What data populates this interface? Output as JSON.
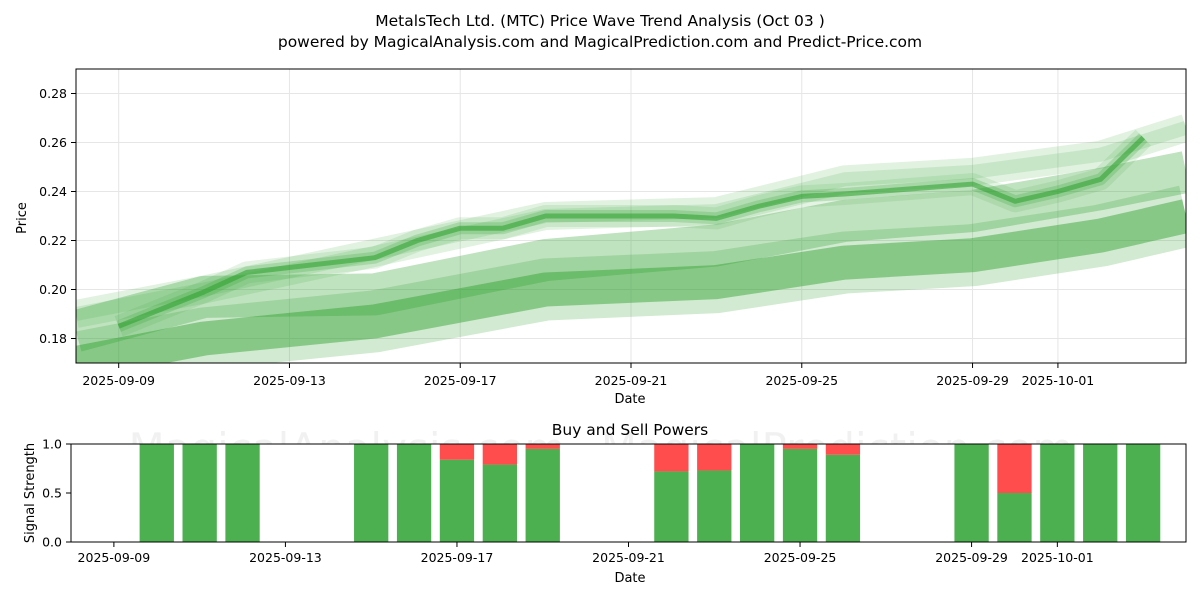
{
  "title_line1": "MetalsTech Ltd. (MTC) Price Wave Trend Analysis (Oct 03 )",
  "title_line2": "powered by MagicalAnalysis.com and MagicalPrediction.com and Predict-Price.com",
  "watermarks": [
    "MagicalAnalysis.com",
    "MagicalPrediction.com"
  ],
  "colors": {
    "trend_green": "#2ca02c",
    "buy_green": "#4caf50",
    "sell_red": "#ff4d4d",
    "grid": "#e6e6e6"
  },
  "chart_data": [
    {
      "type": "line",
      "title": "",
      "xlabel": "Date",
      "ylabel": "Price",
      "ylim": [
        0.17,
        0.29
      ],
      "xlim": [
        "2025-09-08",
        "2025-10-04"
      ],
      "x_ticks": [
        "2025-09-09",
        "2025-09-13",
        "2025-09-17",
        "2025-09-21",
        "2025-09-25",
        "2025-09-29",
        "2025-10-01"
      ],
      "y_ticks": [
        0.18,
        0.2,
        0.22,
        0.24,
        0.26,
        0.28
      ],
      "grid": true,
      "series": [
        {
          "x": [
            "2025-09-09",
            "2025-09-10",
            "2025-09-11",
            "2025-09-12",
            "2025-09-15",
            "2025-09-16",
            "2025-09-17",
            "2025-09-18",
            "2025-09-19",
            "2025-09-22",
            "2025-09-23",
            "2025-09-24",
            "2025-09-25",
            "2025-09-26",
            "2025-09-29",
            "2025-09-30",
            "2025-10-01",
            "2025-10-02",
            "2025-10-03"
          ],
          "values": [
            0.185,
            0.192,
            0.199,
            0.207,
            0.213,
            0.22,
            0.225,
            0.225,
            0.23,
            0.23,
            0.229,
            0.234,
            0.238,
            0.239,
            0.243,
            0.236,
            0.24,
            0.245,
            0.262
          ]
        },
        {
          "x": [
            "2025-09-08",
            "2025-09-11",
            "2025-09-15",
            "2025-09-19",
            "2025-09-23",
            "2025-09-26",
            "2025-09-29",
            "2025-10-02",
            "2025-10-04"
          ],
          "values": [
            0.183,
            0.197,
            0.198,
            0.212,
            0.218,
            0.228,
            0.232,
            0.241,
            0.248
          ]
        },
        {
          "x": [
            "2025-09-08",
            "2025-09-11",
            "2025-09-15",
            "2025-09-19",
            "2025-09-23",
            "2025-09-26",
            "2025-09-29",
            "2025-10-02",
            "2025-10-04"
          ],
          "values": [
            0.17,
            0.18,
            0.187,
            0.2,
            0.203,
            0.211,
            0.214,
            0.222,
            0.23
          ]
        },
        {
          "x": [
            "2025-09-08",
            "2025-09-11",
            "2025-09-15",
            "2025-09-19",
            "2025-09-23",
            "2025-09-26",
            "2025-09-29",
            "2025-10-02",
            "2025-10-04"
          ],
          "values": [
            0.19,
            0.2,
            0.215,
            0.23,
            0.232,
            0.245,
            0.248,
            0.255,
            0.266
          ]
        }
      ]
    },
    {
      "type": "bar",
      "title": "Buy and Sell Powers",
      "xlabel": "Date",
      "ylabel": "Signal Strength",
      "ylim": [
        0,
        1.0
      ],
      "xlim": [
        "2025-09-08",
        "2025-10-04"
      ],
      "x_ticks": [
        "2025-09-09",
        "2025-09-13",
        "2025-09-17",
        "2025-09-21",
        "2025-09-25",
        "2025-09-29",
        "2025-10-01"
      ],
      "y_ticks": [
        "0.0",
        "0.5",
        "1.0"
      ],
      "categories": [
        "2025-09-10",
        "2025-09-11",
        "2025-09-12",
        "2025-09-15",
        "2025-09-16",
        "2025-09-17",
        "2025-09-18",
        "2025-09-19",
        "2025-09-22",
        "2025-09-23",
        "2025-09-24",
        "2025-09-25",
        "2025-09-26",
        "2025-09-29",
        "2025-09-30",
        "2025-10-01",
        "2025-10-02",
        "2025-10-03"
      ],
      "series": [
        {
          "name": "Buy",
          "values": [
            1.0,
            1.0,
            1.0,
            1.0,
            1.0,
            0.84,
            0.79,
            0.95,
            0.72,
            0.73,
            1.0,
            0.95,
            0.89,
            1.0,
            0.5,
            1.0,
            1.0,
            1.0
          ]
        },
        {
          "name": "Sell",
          "values": [
            0.0,
            0.0,
            0.0,
            0.0,
            0.0,
            0.16,
            0.21,
            0.05,
            0.28,
            0.27,
            0.0,
            0.05,
            0.11,
            0.0,
            0.5,
            0.0,
            0.0,
            0.0
          ]
        }
      ]
    }
  ]
}
